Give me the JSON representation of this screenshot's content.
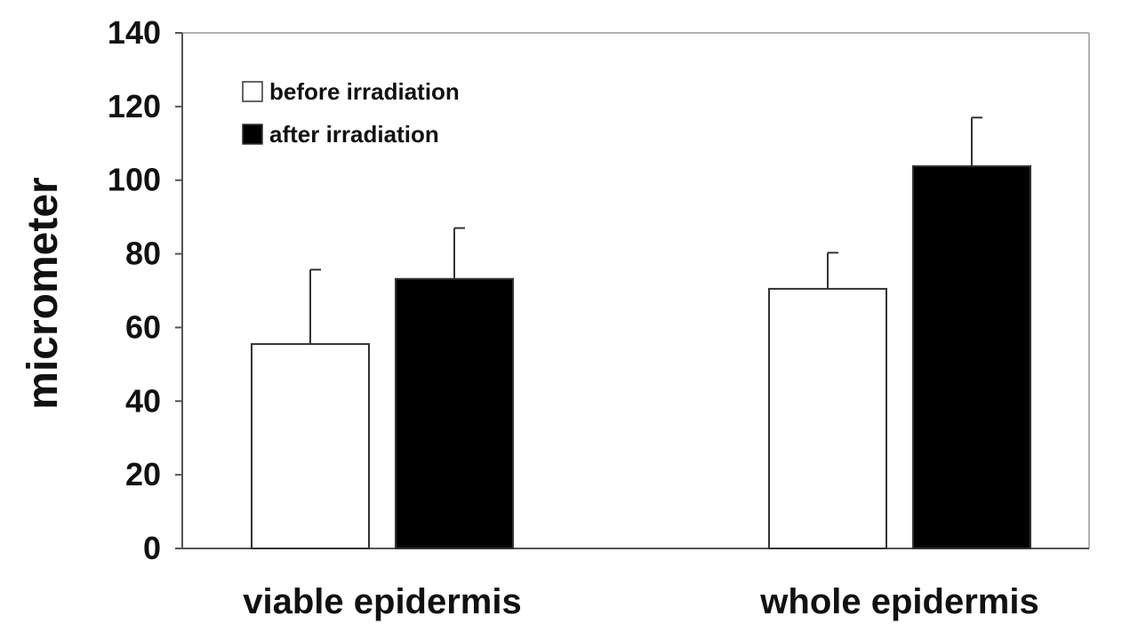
{
  "chart_data": {
    "type": "bar",
    "title": "",
    "xlabel": "",
    "ylabel": "micrometer",
    "ylim": [
      0,
      140
    ],
    "yticks": [
      0,
      20,
      40,
      60,
      80,
      100,
      120,
      140
    ],
    "categories": [
      "viable epidermis",
      "whole epidermis"
    ],
    "series": [
      {
        "name": "before irradiation",
        "fill": "#ffffff",
        "values": [
          55.5,
          70.5
        ],
        "error": [
          20.2,
          9.8
        ]
      },
      {
        "name": "after irradiation",
        "fill": "#000000",
        "values": [
          73.2,
          103.8
        ],
        "error": [
          13.8,
          13.2
        ]
      }
    ],
    "legend_position": "top-left",
    "grid": false
  },
  "colors": {
    "axis": "#555555",
    "frame": "#999999",
    "bar_stroke": "#333333"
  }
}
